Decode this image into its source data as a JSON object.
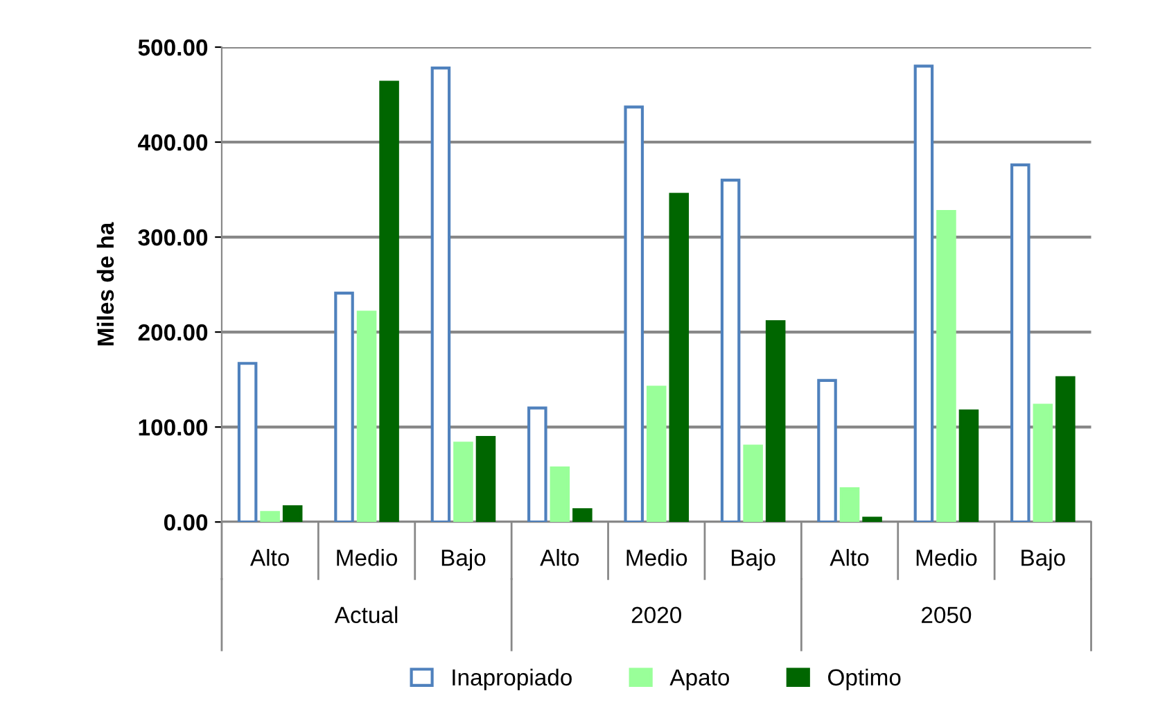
{
  "chart_data": {
    "type": "bar",
    "ylabel": "Miles de ha",
    "categories": [
      "Alto",
      "Medio",
      "Bajo",
      "Alto",
      "Medio",
      "Bajo",
      "Alto",
      "Medio",
      "Bajo"
    ],
    "annotations": [
      "Actual",
      "2020",
      "2050"
    ],
    "series": [
      {
        "name": "Inapropiado",
        "color": "#ffffff",
        "values": [
          167,
          241,
          478,
          120,
          437,
          360,
          149,
          480,
          376
        ]
      },
      {
        "name": "Apato",
        "color": "#99ff99",
        "values": [
          10,
          221,
          83,
          57,
          142,
          80,
          35,
          327,
          123
        ]
      },
      {
        "name": "Optimo",
        "color": "#006600",
        "values": [
          16,
          463,
          89,
          13,
          345,
          211,
          4,
          117,
          152
        ]
      }
    ],
    "ylim": [
      0,
      500
    ],
    "yticks": [
      {
        "value": 0,
        "label": "0.00"
      },
      {
        "value": 100,
        "label": "100.00"
      },
      {
        "value": 200,
        "label": "200.00"
      },
      {
        "value": 300,
        "label": "300.00"
      },
      {
        "value": 400,
        "label": "400.00"
      },
      {
        "value": 500,
        "label": "500.00"
      }
    ],
    "grid": "y",
    "legend": "bottom"
  }
}
